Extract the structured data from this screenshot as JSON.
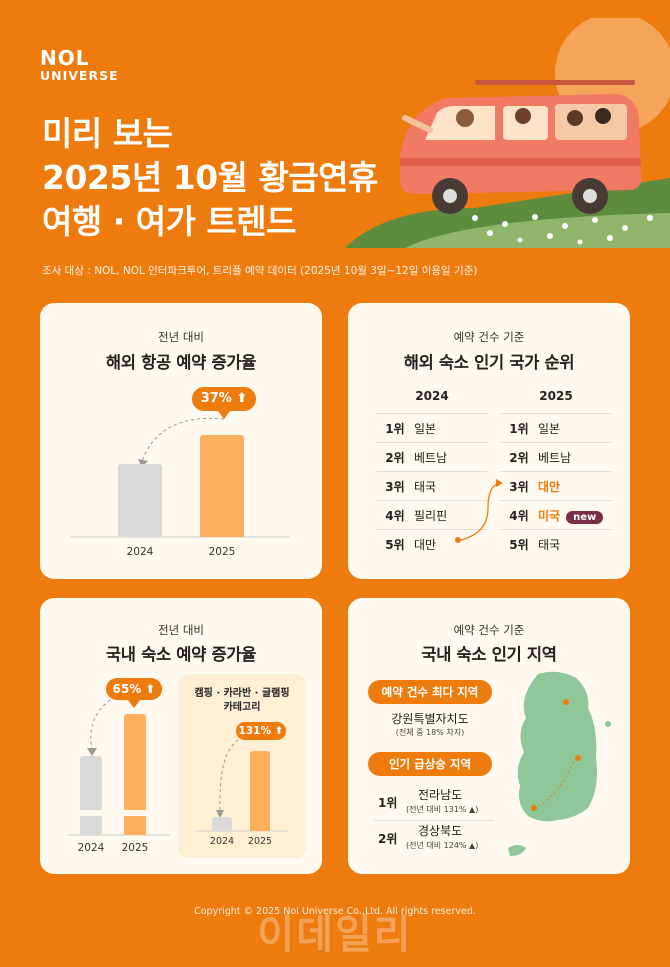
{
  "brand": {
    "line1": "NOL",
    "line2": "UNIVERSE"
  },
  "title": {
    "line1": "미리 보는",
    "line2": "2025년 10월 황금연휴",
    "line3": "여행 · 여가 트렌드"
  },
  "source": "조사 대상 : NOL, NOL 인터파크투어, 트리플 예약 데이터 (2025년 10월 3일~12일 이용일 기준)",
  "card_air": {
    "sub": "전년 대비",
    "heading": "해외 항공 예약 증가율",
    "increase": "37%",
    "years": [
      "2024",
      "2025"
    ]
  },
  "card_rank": {
    "sub": "예약 건수 기준",
    "heading": "해외 숙소 인기 국가 순위",
    "y2024": {
      "year": "2024",
      "rows": [
        {
          "rank": "1위",
          "country": "일본"
        },
        {
          "rank": "2위",
          "country": "베트남"
        },
        {
          "rank": "3위",
          "country": "태국"
        },
        {
          "rank": "4위",
          "country": "필리핀"
        },
        {
          "rank": "5위",
          "country": "대만"
        }
      ]
    },
    "y2025": {
      "year": "2025",
      "rows": [
        {
          "rank": "1위",
          "country": "일본"
        },
        {
          "rank": "2위",
          "country": "베트남"
        },
        {
          "rank": "3위",
          "country": "대만"
        },
        {
          "rank": "4위",
          "country": "미국"
        },
        {
          "rank": "5위",
          "country": "태국"
        }
      ]
    },
    "new_tag": "new"
  },
  "card_dom": {
    "sub": "전년 대비",
    "heading": "국내 숙소 예약 증가율",
    "increase": "65%",
    "years": [
      "2024",
      "2025"
    ],
    "inner_title_1": "캠핑 · 카라반 · 글램핑",
    "inner_title_2": "카테고리",
    "inner_increase": "131%",
    "inner_years": [
      "2024",
      "2025"
    ]
  },
  "card_region": {
    "sub": "예약 건수 기준",
    "heading": "국내 숙소 인기 지역",
    "top_label": "예약 건수 최다 지역",
    "top_region": "강원특별자치도",
    "top_note": "(전체 중 18% 차지)",
    "rise_label": "인기 급상승 지역",
    "rise": [
      {
        "rank": "1위",
        "region": "전라남도",
        "note": "(전년 대비 131% ▲)"
      },
      {
        "rank": "2위",
        "region": "경상북도",
        "note": "(전년 대비 124% ▲)"
      }
    ]
  },
  "footer": "Copyright © 2025 Nol Universe Co.,Ltd. All rights reserved.",
  "watermark": "이데일리",
  "colors": {
    "background": "#ED7B0E",
    "card": "#FFF9EF",
    "bar_orange": "#FFB05C",
    "bar_grey": "#D9D9D9",
    "new_tag": "#7A2E44",
    "map": "#8FC79A"
  },
  "icons": [
    "up-arrow-icon",
    "curved-arrow-icon",
    "van-illustration",
    "korea-map"
  ]
}
